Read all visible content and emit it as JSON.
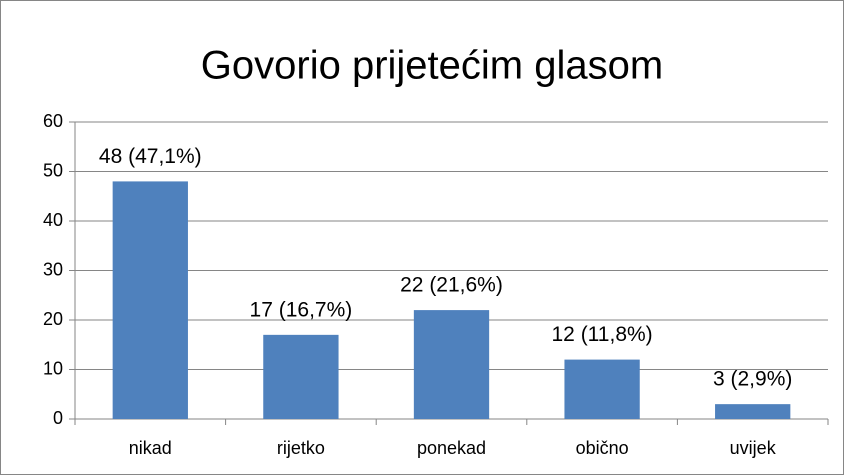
{
  "chart_data": {
    "type": "bar",
    "title": "Govorio prijetećim glasom",
    "categories": [
      "nikad",
      "rijetko",
      "ponekad",
      "obično",
      "uvijek"
    ],
    "values": [
      48,
      17,
      22,
      12,
      3
    ],
    "value_labels": [
      "48 (47,1%)",
      "17 (16,7%)",
      "22 (21,6%)",
      "12 (11,8%)",
      "3 (2,9%)"
    ],
    "color": "#4f81bd",
    "ylim": [
      0,
      60
    ],
    "yticks": [
      0,
      10,
      20,
      30,
      40,
      50,
      60
    ],
    "grid": true
  }
}
